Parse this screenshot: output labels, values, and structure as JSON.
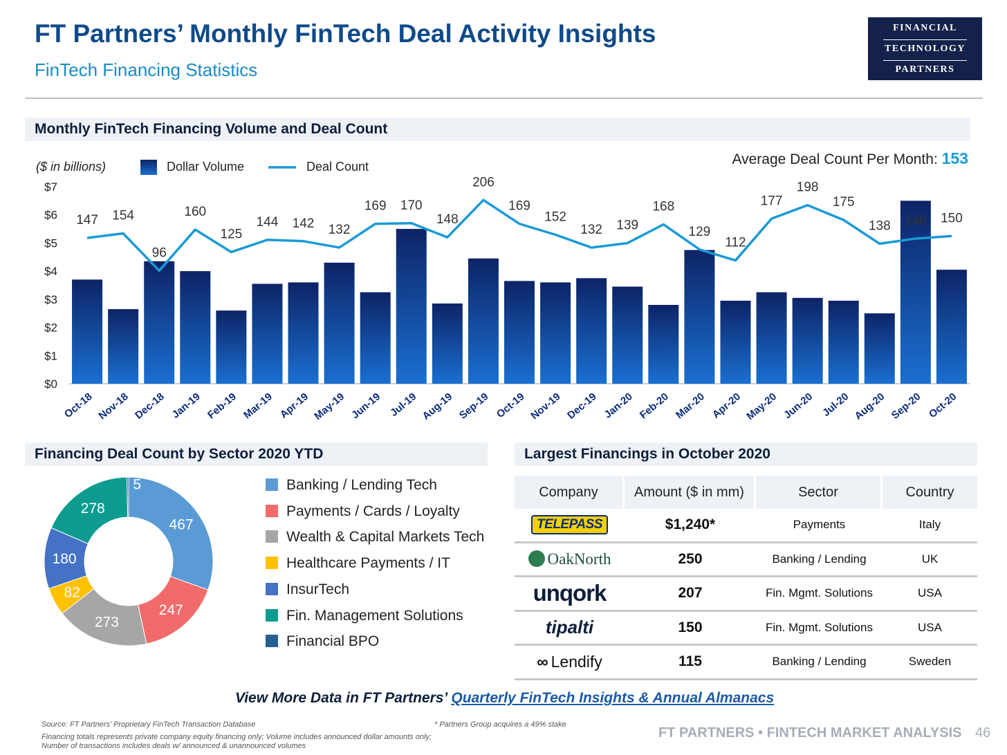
{
  "header": {
    "title": "FT Partners’ Monthly FinTech Deal Activity Insights",
    "subtitle": "FinTech Financing Statistics",
    "logo": {
      "line1": "FINANCIAL",
      "line2": "TECHNOLOGY",
      "line3": "PARTNERS"
    }
  },
  "sections": {
    "main": "Monthly FinTech Financing Volume and Deal Count",
    "sector": "Financing Deal Count by Sector 2020 YTD",
    "largest": "Largest Financings in October 2020"
  },
  "chart_data": [
    {
      "type": "bar",
      "title": "Monthly FinTech Financing Volume and Deal Count",
      "units_note": "($ in billions)",
      "average_label": "Average Deal Count Per Month:",
      "average_value": "153",
      "categories": [
        "Oct-18",
        "Nov-18",
        "Dec-18",
        "Jan-19",
        "Feb-19",
        "Mar-19",
        "Apr-19",
        "May-19",
        "Jun-19",
        "Jul-19",
        "Aug-19",
        "Sep-19",
        "Oct-19",
        "Nov-19",
        "Dec-19",
        "Jan-20",
        "Feb-20",
        "Mar-20",
        "Apr-20",
        "May-20",
        "Jun-20",
        "Jul-20",
        "Aug-20",
        "Sep-20",
        "Oct-20"
      ],
      "y_ticks": [
        "$0",
        "$1",
        "$2",
        "$3",
        "$4",
        "$5",
        "$6",
        "$7"
      ],
      "ylim": [
        0,
        7
      ],
      "series": [
        {
          "name": "Dollar Volume",
          "type": "bar",
          "color": "#0d2b7a",
          "values": [
            3.7,
            2.65,
            4.35,
            4.0,
            2.6,
            3.55,
            3.6,
            4.3,
            3.25,
            5.5,
            2.85,
            4.45,
            3.65,
            3.6,
            3.75,
            3.45,
            2.8,
            4.75,
            2.95,
            3.25,
            3.05,
            2.95,
            2.5,
            6.5,
            4.05
          ]
        },
        {
          "name": "Deal Count",
          "type": "line",
          "color": "#1a9ad6",
          "values": [
            147,
            154,
            96,
            160,
            125,
            144,
            142,
            132,
            169,
            170,
            148,
            206,
            169,
            152,
            132,
            139,
            168,
            129,
            112,
            177,
            198,
            175,
            138,
            146,
            150
          ]
        }
      ]
    },
    {
      "type": "pie",
      "title": "Financing Deal Count by Sector 2020 YTD",
      "slices": [
        {
          "label": "Banking / Lending Tech",
          "value": 467,
          "color": "#5b9bd5"
        },
        {
          "label": "Payments / Cards / Loyalty",
          "value": 247,
          "color": "#f26b6b"
        },
        {
          "label": "Wealth & Capital Markets Tech",
          "value": 273,
          "color": "#a6a6a6"
        },
        {
          "label": "Healthcare Payments / IT",
          "value": 82,
          "color": "#ffc000"
        },
        {
          "label": "InsurTech",
          "value": 180,
          "color": "#4472c4"
        },
        {
          "label": "Fin. Management Solutions",
          "value": 278,
          "color": "#0e9c90"
        },
        {
          "label": "Financial BPO",
          "value": 5,
          "color": "#255e91"
        }
      ]
    }
  ],
  "table": {
    "headers": [
      "Company",
      "Amount ($ in mm)",
      "Sector",
      "Country"
    ],
    "rows": [
      {
        "company": "TELEPASS",
        "amount": "$1,240*",
        "sector": "Payments",
        "country": "Italy"
      },
      {
        "company": "OakNorth",
        "amount": "250",
        "sector": "Banking / Lending",
        "country": "UK"
      },
      {
        "company": "unqork",
        "amount": "207",
        "sector": "Fin. Mgmt. Solutions",
        "country": "USA"
      },
      {
        "company": "tipalti",
        "amount": "150",
        "sector": "Fin. Mgmt. Solutions",
        "country": "USA"
      },
      {
        "company": "Lendify",
        "amount": "115",
        "sector": "Banking / Lending",
        "country": "Sweden"
      }
    ]
  },
  "footer": {
    "view_more_prefix": "View More Data in FT Partners’ ",
    "view_more_link": "Quarterly FinTech Insights & Annual Almanacs",
    "source": "Source: FT Partners’ Proprietary FinTech Transaction Database",
    "note": "Financing totals represents private company equity financing only; Volume includes announced dollar amounts only; Number of transactions includes deals w/ announced & unannounced volumes",
    "asterisk_note": "* Partners Group acquires a 49% stake",
    "brand": "FT PARTNERS • FINTECH MARKET ANALYSIS",
    "page": "46"
  }
}
